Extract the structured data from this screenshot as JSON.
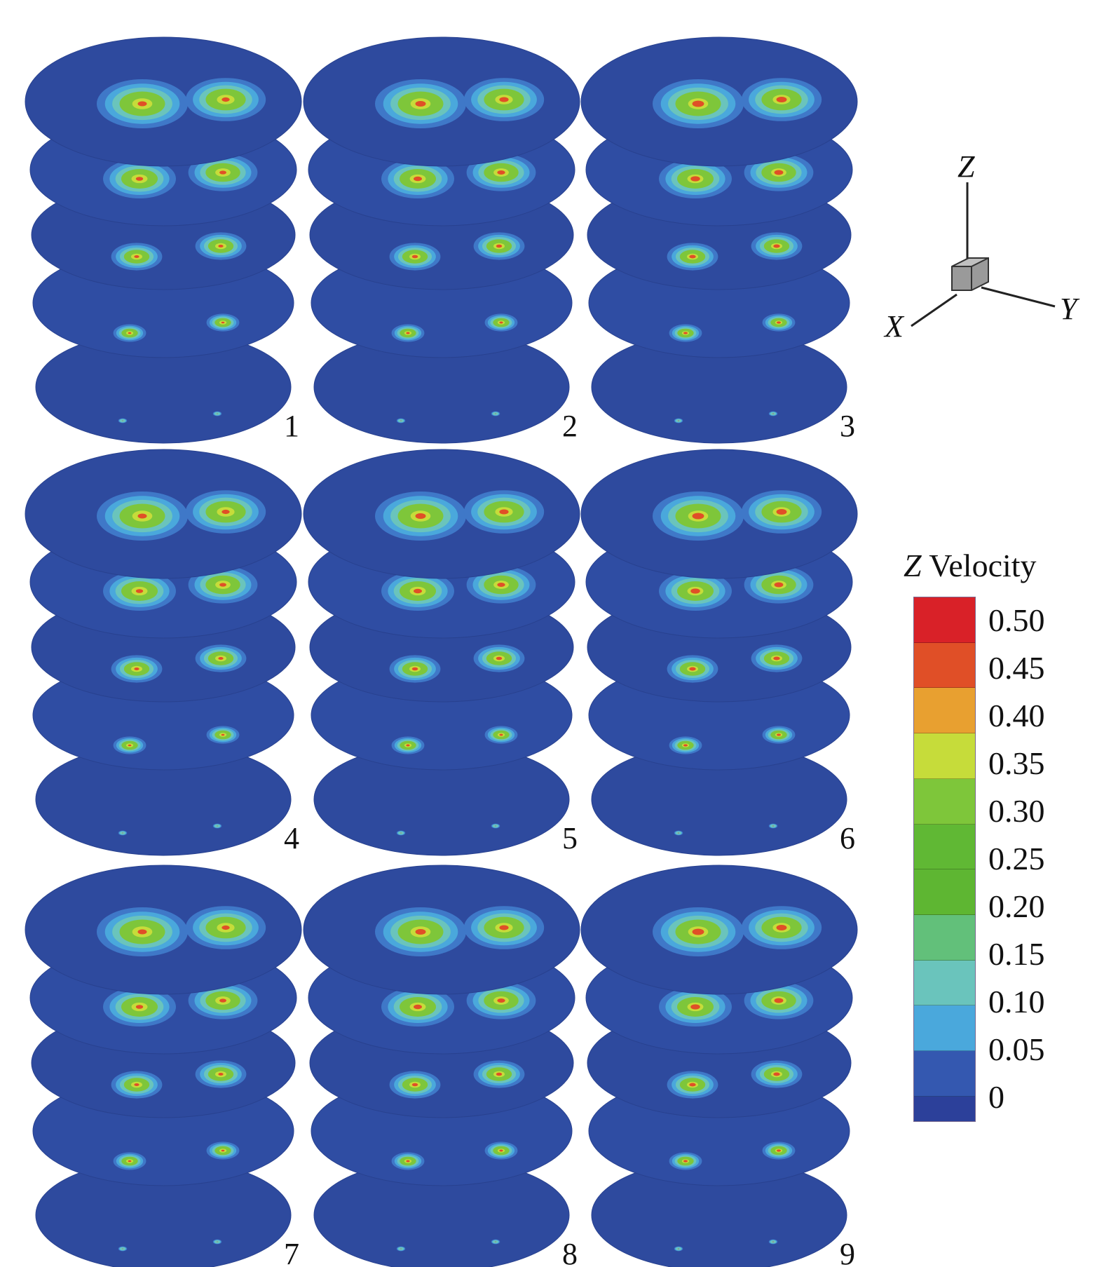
{
  "panels": [
    {
      "label": "1"
    },
    {
      "label": "2"
    },
    {
      "label": "3"
    },
    {
      "label": "4"
    },
    {
      "label": "5"
    },
    {
      "label": "6"
    },
    {
      "label": "7"
    },
    {
      "label": "8"
    },
    {
      "label": "9"
    }
  ],
  "axes": {
    "z": "Z",
    "x": "X",
    "y": "Y"
  },
  "colorbar": {
    "title_var": "Z",
    "title_rest": " Velocity",
    "ticks": [
      "0.50",
      "0.45",
      "0.40",
      "0.35",
      "0.30",
      "0.25",
      "0.20",
      "0.15",
      "0.10",
      "0.05",
      "0"
    ],
    "colors": [
      "#d92128",
      "#e04f27",
      "#e8a030",
      "#c6dc3a",
      "#7ec63a",
      "#60b834",
      "#5eb632",
      "#62c07a",
      "#6ac4bc",
      "#4aa8dc",
      "#3458b0",
      "#2c409a"
    ]
  }
}
